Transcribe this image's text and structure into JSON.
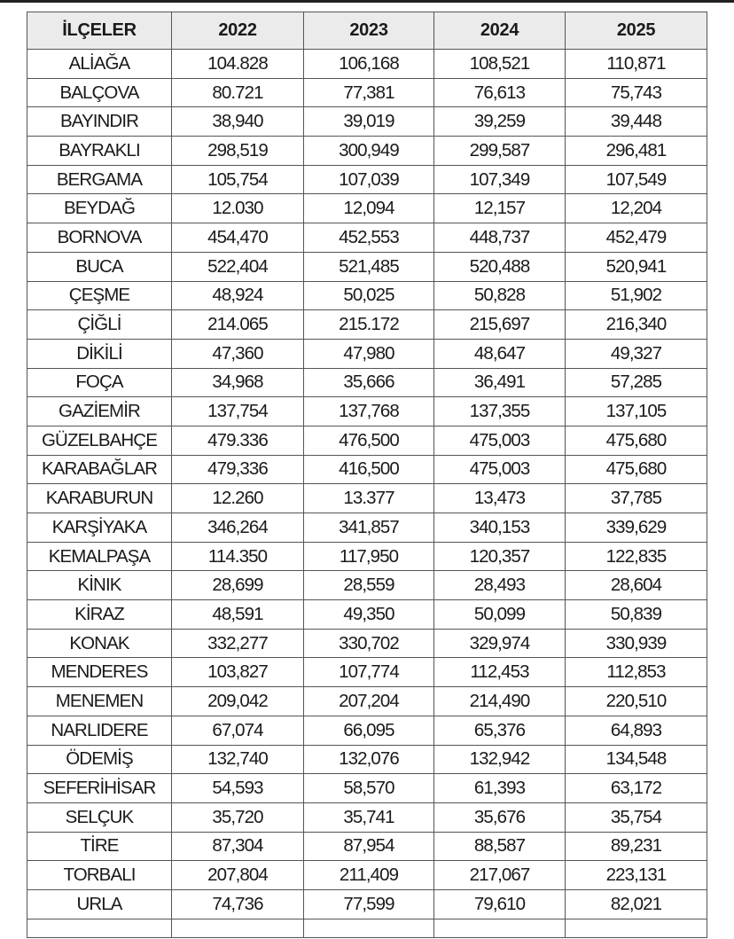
{
  "table": {
    "headers": [
      "İLÇELER",
      "2022",
      "2023",
      "2024",
      "2025"
    ],
    "rows": [
      [
        "ALİAĞA",
        "104.828",
        "106,168",
        "108,521",
        "110,871"
      ],
      [
        "BALÇOVA",
        "80.721",
        "77,381",
        "76,613",
        "75,743"
      ],
      [
        "BAYINDIR",
        "38,940",
        "39,019",
        "39,259",
        "39,448"
      ],
      [
        "BAYRAKLI",
        "298,519",
        "300,949",
        "299,587",
        "296,481"
      ],
      [
        "BERGAMA",
        "105,754",
        "107,039",
        "107,349",
        "107,549"
      ],
      [
        "BEYDAĞ",
        "12.030",
        "12,094",
        "12,157",
        "12,204"
      ],
      [
        "BORNOVA",
        "454,470",
        "452,553",
        "448,737",
        "452,479"
      ],
      [
        "BUCA",
        "522,404",
        "521,485",
        "520,488",
        "520,941"
      ],
      [
        "ÇEŞME",
        "48,924",
        "50,025",
        "50,828",
        "51,902"
      ],
      [
        "ÇİĞLİ",
        "214.065",
        "215.172",
        "215,697",
        "216,340"
      ],
      [
        "DİKİLİ",
        "47,360",
        "47,980",
        "48,647",
        "49,327"
      ],
      [
        "FOÇA",
        "34,968",
        "35,666",
        "36,491",
        "57,285"
      ],
      [
        "GAZİEMİR",
        "137,754",
        "137,768",
        "137,355",
        "137,105"
      ],
      [
        "GÜZELBAHÇE",
        "479.336",
        "476,500",
        "475,003",
        "475,680"
      ],
      [
        "KARABAĞLAR",
        "479,336",
        "416,500",
        "475,003",
        "475,680"
      ],
      [
        "KARABURUN",
        "12.260",
        "13.377",
        "13,473",
        "37,785"
      ],
      [
        "KARŞİYAKA",
        "346,264",
        "341,857",
        "340,153",
        "339,629"
      ],
      [
        "KEMALPAŞA",
        "114.350",
        "117,950",
        "120,357",
        "122,835"
      ],
      [
        "KİNIK",
        "28,699",
        "28,559",
        "28,493",
        "28,604"
      ],
      [
        "KİRAZ",
        "48,591",
        "49,350",
        "50,099",
        "50,839"
      ],
      [
        "KONAK",
        "332,277",
        "330,702",
        "329,974",
        "330,939"
      ],
      [
        "MENDERES",
        "103,827",
        "107,774",
        "112,453",
        "112,853"
      ],
      [
        "MENEMEN",
        "209,042",
        "207,204",
        "214,490",
        "220,510"
      ],
      [
        "NARLIDERE",
        "67,074",
        "66,095",
        "65,376",
        "64,893"
      ],
      [
        "ÖDEMİŞ",
        "132,740",
        "132,076",
        "132,942",
        "134,548"
      ],
      [
        "SEFERİHİSAR",
        "54,593",
        "58,570",
        "61,393",
        "63,172"
      ],
      [
        "SELÇUK",
        "35,720",
        "35,741",
        "35,676",
        "35,754"
      ],
      [
        "TİRE",
        "87,304",
        "87,954",
        "88,587",
        "89,231"
      ],
      [
        "TORBALI",
        "207,804",
        "211,409",
        "217,067",
        "223,131"
      ],
      [
        "URLA",
        "74,736",
        "77,599",
        "79,610",
        "82,021"
      ]
    ]
  },
  "colors": {
    "header_bg": "#ebebeb",
    "border": "#555555",
    "text": "#1a1a1a"
  }
}
